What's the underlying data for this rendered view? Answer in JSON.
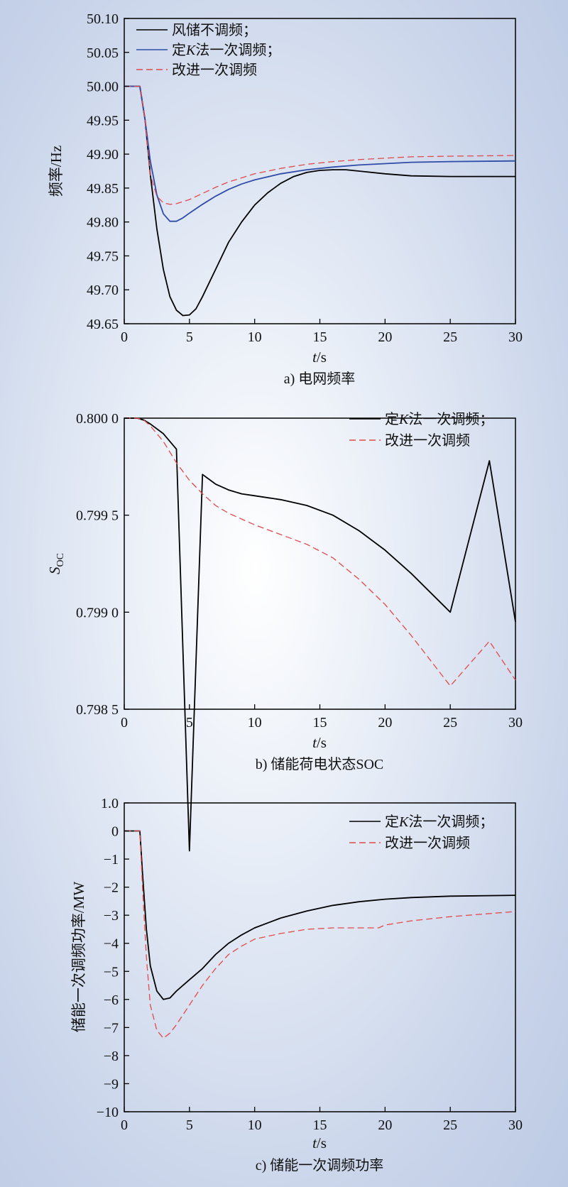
{
  "charts": [
    {
      "caption": "a) 电网频率",
      "ylabel": "频率/Hz",
      "xlabel": "t/s",
      "xticks": [
        "0",
        "5",
        "10",
        "15",
        "20",
        "25",
        "30"
      ],
      "yticks": [
        "50.10",
        "50.05",
        "50.00",
        "49.95",
        "49.90",
        "49.85",
        "49.80",
        "49.75",
        "49.70",
        "49.65"
      ],
      "legend": [
        "风储不调频；",
        "定K法一次调频；",
        "改进一次调频"
      ]
    },
    {
      "caption": "b) 储能荷电状态SOC",
      "ylabel": "SOC",
      "xlabel": "t/s",
      "xticks": [
        "0",
        "5",
        "10",
        "15",
        "20",
        "25",
        "30"
      ],
      "yticks": [
        "0.800 0",
        "0.799 5",
        "0.799 0",
        "0.798 5"
      ],
      "legend": [
        "定K法一次调频；",
        "改进一次调频"
      ]
    },
    {
      "caption": "c) 储能一次调频功率",
      "ylabel": "储能一次调频功率/MW",
      "xlabel": "t/s",
      "xticks": [
        "0",
        "5",
        "10",
        "15",
        "20",
        "25",
        "30"
      ],
      "yticks": [
        "1.0",
        "0",
        "−1",
        "−2",
        "−3",
        "−4",
        "−5",
        "−6",
        "−7",
        "−8",
        "−9",
        "−10"
      ],
      "legend": [
        "定K法一次调频；",
        "改进一次调频"
      ]
    }
  ],
  "chart_data": [
    {
      "type": "line",
      "title": "a) 电网频率",
      "xlabel": "t/s",
      "ylabel": "频率/Hz",
      "xlim": [
        0,
        30
      ],
      "ylim": [
        49.65,
        50.1
      ],
      "legend_position": "top-left",
      "series": [
        {
          "name": "风储不调频",
          "color": "#000000",
          "dash": "solid",
          "x": [
            0,
            1,
            1.2,
            1.6,
            2,
            2.5,
            3,
            3.5,
            4,
            4.5,
            5,
            5.5,
            6,
            7,
            8,
            9,
            10,
            11,
            12,
            13,
            14,
            15,
            16,
            17,
            18,
            20,
            22,
            25,
            30
          ],
          "y": [
            50.0,
            50.0,
            50.0,
            49.95,
            49.87,
            49.79,
            49.73,
            49.69,
            49.67,
            49.662,
            49.663,
            49.672,
            49.69,
            49.73,
            49.77,
            49.8,
            49.825,
            49.843,
            49.857,
            49.867,
            49.873,
            49.876,
            49.877,
            49.877,
            49.875,
            49.871,
            49.868,
            49.867,
            49.867
          ]
        },
        {
          "name": "定K法一次调频",
          "color": "#2e4ca8",
          "dash": "solid",
          "x": [
            0,
            1,
            1.2,
            1.6,
            2,
            2.5,
            3,
            3.5,
            4,
            4.5,
            5,
            6,
            7,
            8,
            9,
            10,
            12,
            14,
            16,
            18,
            20,
            22,
            25,
            30
          ],
          "y": [
            50.0,
            50.0,
            50.0,
            49.95,
            49.89,
            49.84,
            49.812,
            49.801,
            49.801,
            49.806,
            49.813,
            49.826,
            49.838,
            49.848,
            49.856,
            49.862,
            49.871,
            49.877,
            49.881,
            49.884,
            49.886,
            49.888,
            49.889,
            49.89
          ]
        },
        {
          "name": "改进一次调频",
          "color": "#e04a4a",
          "dash": "dashed",
          "x": [
            0,
            1,
            1.2,
            1.6,
            2,
            2.5,
            3,
            3.5,
            4,
            5,
            6,
            7,
            8,
            10,
            12,
            14,
            16,
            18,
            20,
            22,
            25,
            30
          ],
          "y": [
            50.0,
            50.0,
            50.0,
            49.95,
            49.87,
            49.838,
            49.828,
            49.826,
            49.827,
            49.833,
            49.842,
            49.851,
            49.859,
            49.871,
            49.879,
            49.885,
            49.889,
            49.892,
            49.894,
            49.896,
            49.897,
            49.898
          ]
        }
      ]
    },
    {
      "type": "line",
      "title": "b) 储能荷电状态SOC",
      "xlabel": "t/s",
      "ylabel": "SOC",
      "xlim": [
        0,
        30
      ],
      "ylim": [
        0.7985,
        0.8
      ],
      "legend_position": "top-right",
      "series": [
        {
          "name": "定K法一次调频",
          "color": "#000000",
          "dash": "solid",
          "x": [
            0,
            1,
            1.5,
            2,
            3,
            4,
            5,
            6,
            7,
            8,
            9,
            10,
            12,
            14,
            16,
            18,
            20,
            22,
            25,
            28,
            30
          ],
          "y": [
            0.8,
            0.8,
            0.79999,
            0.79997,
            0.79992,
            0.79984,
            0.79777,
            0.79971,
            0.79966,
            0.79963,
            0.79961,
            0.7996,
            0.79958,
            0.79955,
            0.7995,
            0.79942,
            0.79932,
            0.7992,
            0.799,
            0.79978,
            0.79895
          ]
        },
        {
          "name": "改进一次调频",
          "color": "#e04a4a",
          "dash": "dashed",
          "x": [
            0,
            1,
            1.5,
            2,
            3,
            4,
            5,
            6,
            7,
            8,
            9,
            10,
            12,
            14,
            16,
            18,
            20,
            22,
            25,
            28,
            30
          ],
          "y": [
            0.8,
            0.8,
            0.79999,
            0.79996,
            0.79988,
            0.79977,
            0.79968,
            0.79961,
            0.79955,
            0.79951,
            0.79948,
            0.79945,
            0.7994,
            0.79935,
            0.79928,
            0.79917,
            0.79904,
            0.79888,
            0.79862,
            0.79885,
            0.79865
          ]
        }
      ]
    },
    {
      "type": "line",
      "title": "c) 储能一次调频功率",
      "xlabel": "t/s",
      "ylabel": "储能一次调频功率/MW",
      "xlim": [
        0,
        30
      ],
      "ylim": [
        -10,
        1
      ],
      "legend_position": "top-right",
      "series": [
        {
          "name": "定K法一次调频",
          "color": "#000000",
          "dash": "solid",
          "x": [
            0,
            1,
            1.2,
            1.4,
            1.7,
            2,
            2.5,
            3,
            3.5,
            4,
            5,
            5.5,
            6,
            7,
            8,
            9,
            10,
            12,
            14,
            16,
            18,
            20,
            22,
            25,
            30
          ],
          "y": [
            0,
            0,
            0,
            -1.5,
            -3.5,
            -4.8,
            -5.7,
            -6.0,
            -5.95,
            -5.7,
            -5.3,
            -5.1,
            -4.9,
            -4.4,
            -4.0,
            -3.7,
            -3.45,
            -3.1,
            -2.85,
            -2.65,
            -2.52,
            -2.43,
            -2.37,
            -2.32,
            -2.29
          ]
        },
        {
          "name": "改进一次调频",
          "color": "#e04a4a",
          "dash": "dashed",
          "x": [
            0,
            1,
            1.2,
            1.4,
            1.7,
            2,
            2.5,
            3,
            3.5,
            4,
            5,
            6,
            7,
            8,
            9,
            10,
            12,
            14,
            16,
            18,
            19.5,
            20,
            22,
            25,
            30
          ],
          "y": [
            0,
            0,
            0,
            -2.0,
            -4.5,
            -6.2,
            -7.1,
            -7.38,
            -7.2,
            -6.9,
            -6.2,
            -5.5,
            -4.9,
            -4.4,
            -4.1,
            -3.85,
            -3.65,
            -3.5,
            -3.45,
            -3.45,
            -3.45,
            -3.35,
            -3.2,
            -3.05,
            -2.87
          ]
        }
      ]
    }
  ]
}
